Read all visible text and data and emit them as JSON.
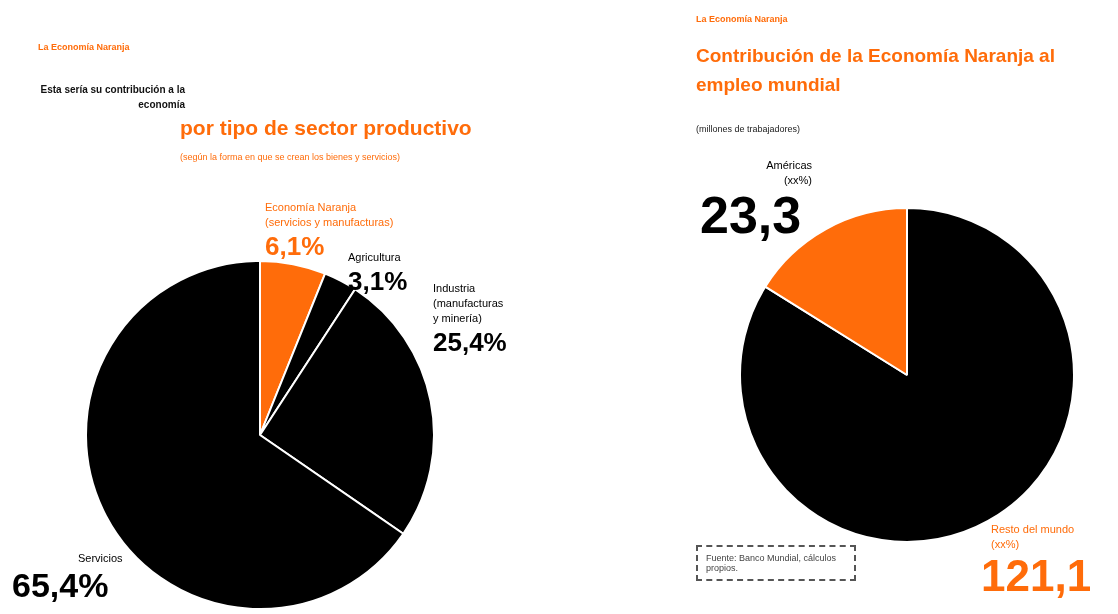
{
  "chart_data": [
    {
      "type": "pie",
      "title": "Esta sería su contribución a la economía",
      "subtitle": "por tipo de sector productivo",
      "annotations": [
        "La Economía Naranja",
        "(según la forma en que se crean los bienes y servicios)"
      ],
      "categories": [
        "Economía Naranja\n(servicios y manufacturas)",
        "Agricultura",
        "Industria\n(manufacturas\ny minería)",
        "Servicios"
      ],
      "values": [
        6.1,
        3.1,
        25.4,
        65.4
      ],
      "value_labels": [
        "6,1%",
        "3,1%",
        "25,4%",
        "65,4%"
      ],
      "colors": [
        "#ff6c0a",
        "#000000",
        "#000000",
        "#000000"
      ],
      "legend": false
    },
    {
      "type": "pie",
      "title": "Contribución de la Economía Naranja al empleo mundial",
      "subtitle": "(millones de trabajadores)",
      "annotations": [
        "La Economía Naranja",
        "Fuente: Banco Mundial, cálculos propios."
      ],
      "categories": [
        "Resto del mundo\n(xx%)",
        "Américas\n(xx%)"
      ],
      "values": [
        121.1,
        23.3
      ],
      "value_labels": [
        "121,1",
        "23,3"
      ],
      "colors": [
        "#000000",
        "#ff6c0a"
      ],
      "legend": false
    }
  ]
}
